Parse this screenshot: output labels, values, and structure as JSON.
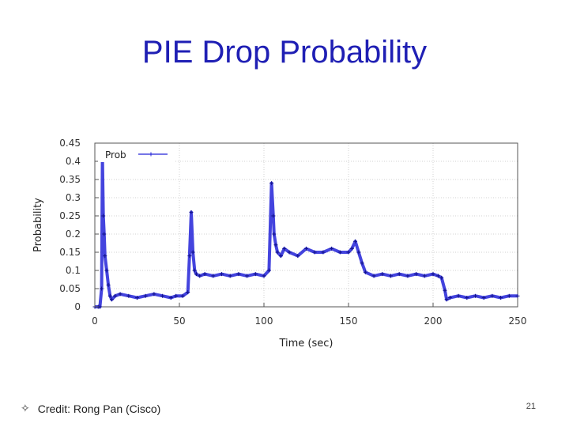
{
  "slide": {
    "title": "PIE Drop Probability",
    "credit_bullet": "✧",
    "credit": "Credit: Rong Pan (Cisco)",
    "page_number": "21"
  },
  "colors": {
    "title": "#1f1fb4",
    "series": "#2323d8"
  },
  "chart_data": {
    "type": "line",
    "xlabel": "Time (sec)",
    "ylabel": "Probability",
    "xlim": [
      0,
      250
    ],
    "ylim": [
      0,
      0.45
    ],
    "xticks": [
      "0",
      "50",
      "100",
      "150",
      "200",
      "250"
    ],
    "yticks": [
      "0",
      "0.05",
      "0.1",
      "0.15",
      "0.2",
      "0.25",
      "0.3",
      "0.35",
      "0.4",
      "0.45"
    ],
    "grid": true,
    "legend_position": "top-left",
    "series": [
      {
        "name": "Prob",
        "x": [
          0,
          2,
          3,
          4,
          4.5,
          5,
          5.5,
          6,
          7,
          8,
          9,
          10,
          12,
          15,
          20,
          25,
          30,
          35,
          40,
          45,
          48,
          52,
          55,
          56,
          57,
          58,
          59,
          60,
          62,
          65,
          70,
          75,
          80,
          85,
          90,
          95,
          100,
          103,
          104.5,
          105.5,
          106,
          107,
          108,
          110,
          112,
          115,
          120,
          125,
          130,
          135,
          140,
          145,
          150,
          152,
          154,
          156,
          158,
          160,
          165,
          170,
          175,
          180,
          185,
          190,
          195,
          200,
          203,
          205,
          207,
          208,
          210,
          215,
          220,
          225,
          230,
          235,
          240,
          245,
          250
        ],
        "y": [
          0,
          0,
          0,
          0.05,
          0.41,
          0.25,
          0.2,
          0.14,
          0.1,
          0.06,
          0.03,
          0.02,
          0.03,
          0.035,
          0.03,
          0.025,
          0.03,
          0.035,
          0.03,
          0.025,
          0.03,
          0.03,
          0.04,
          0.14,
          0.26,
          0.15,
          0.1,
          0.09,
          0.085,
          0.09,
          0.085,
          0.09,
          0.085,
          0.09,
          0.085,
          0.09,
          0.085,
          0.1,
          0.34,
          0.25,
          0.2,
          0.17,
          0.15,
          0.14,
          0.16,
          0.15,
          0.14,
          0.16,
          0.15,
          0.15,
          0.16,
          0.15,
          0.15,
          0.16,
          0.18,
          0.15,
          0.12,
          0.095,
          0.085,
          0.09,
          0.085,
          0.09,
          0.085,
          0.09,
          0.085,
          0.09,
          0.085,
          0.08,
          0.045,
          0.02,
          0.025,
          0.03,
          0.025,
          0.03,
          0.025,
          0.03,
          0.025,
          0.03,
          0.03
        ]
      }
    ]
  }
}
